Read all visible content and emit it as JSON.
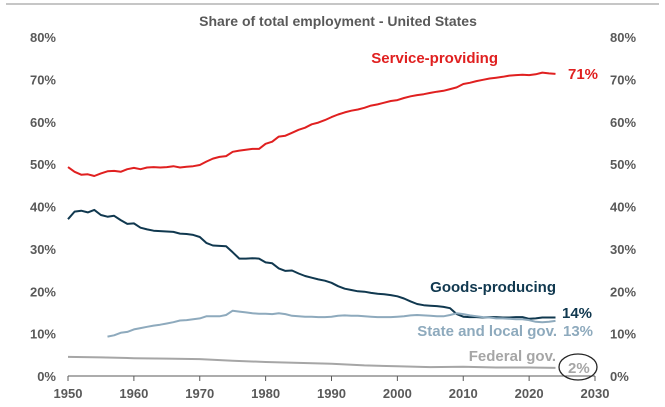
{
  "chart_data": {
    "type": "line",
    "title": "Share of total employment - United States",
    "xlim": [
      1950,
      2030
    ],
    "ylim": [
      0,
      80
    ],
    "x_ticks": [
      "1950",
      "1960",
      "1970",
      "1980",
      "1990",
      "2000",
      "2010",
      "2020",
      "2030"
    ],
    "y_ticks": [
      "0%",
      "10%",
      "20%",
      "30%",
      "40%",
      "50%",
      "60%",
      "70%",
      "80%"
    ],
    "grid": false,
    "legend": "none",
    "series": [
      {
        "name": "Service-providing",
        "end_label": "71%",
        "color": "#e02020",
        "x": [
          1950,
          1951,
          1952,
          1953,
          1954,
          1955,
          1956,
          1957,
          1958,
          1959,
          1960,
          1961,
          1962,
          1963,
          1964,
          1965,
          1966,
          1967,
          1968,
          1969,
          1970,
          1971,
          1972,
          1973,
          1974,
          1975,
          1976,
          1977,
          1978,
          1979,
          1980,
          1981,
          1982,
          1983,
          1984,
          1985,
          1986,
          1987,
          1988,
          1989,
          1990,
          1991,
          1992,
          1993,
          1994,
          1995,
          1996,
          1997,
          1998,
          1999,
          2000,
          2001,
          2002,
          2003,
          2004,
          2005,
          2006,
          2007,
          2008,
          2009,
          2010,
          2011,
          2012,
          2013,
          2014,
          2015,
          2016,
          2017,
          2018,
          2019,
          2020,
          2021,
          2022,
          2023,
          2024
        ],
        "values": [
          49.3,
          48.2,
          47.5,
          47.6,
          47.2,
          47.8,
          48.3,
          48.4,
          48.2,
          48.8,
          49.1,
          48.8,
          49.2,
          49.3,
          49.2,
          49.3,
          49.5,
          49.2,
          49.4,
          49.5,
          49.8,
          50.6,
          51.3,
          51.7,
          51.9,
          52.9,
          53.2,
          53.4,
          53.6,
          53.6,
          54.8,
          55.3,
          56.5,
          56.7,
          57.4,
          58.1,
          58.6,
          59.4,
          59.8,
          60.4,
          61.1,
          61.7,
          62.2,
          62.6,
          62.9,
          63.3,
          63.8,
          64.1,
          64.5,
          64.9,
          65.1,
          65.6,
          66.0,
          66.3,
          66.5,
          66.8,
          67.1,
          67.3,
          67.7,
          68.1,
          68.9,
          69.2,
          69.6,
          69.9,
          70.2,
          70.4,
          70.6,
          70.9,
          71.0,
          71.1,
          71.0,
          71.2,
          71.6,
          71.4,
          71.3
        ]
      },
      {
        "name": "Goods-producing",
        "end_label": "14%",
        "color": "#10384f",
        "x": [
          1950,
          1951,
          1952,
          1953,
          1954,
          1955,
          1956,
          1957,
          1958,
          1959,
          1960,
          1961,
          1962,
          1963,
          1964,
          1965,
          1966,
          1967,
          1968,
          1969,
          1970,
          1971,
          1972,
          1973,
          1974,
          1975,
          1976,
          1977,
          1978,
          1979,
          1980,
          1981,
          1982,
          1983,
          1984,
          1985,
          1986,
          1987,
          1988,
          1989,
          1990,
          1991,
          1992,
          1993,
          1994,
          1995,
          1996,
          1997,
          1998,
          1999,
          2000,
          2001,
          2002,
          2003,
          2004,
          2005,
          2006,
          2007,
          2008,
          2009,
          2010,
          2011,
          2012,
          2013,
          2014,
          2015,
          2016,
          2017,
          2018,
          2019,
          2020,
          2021,
          2022,
          2023,
          2024
        ],
        "values": [
          37.0,
          38.8,
          39.0,
          38.6,
          39.2,
          38.0,
          37.6,
          37.8,
          36.8,
          35.9,
          36.0,
          35.0,
          34.6,
          34.3,
          34.2,
          34.1,
          34.0,
          33.6,
          33.5,
          33.3,
          32.8,
          31.4,
          30.8,
          30.7,
          30.6,
          29.2,
          27.7,
          27.7,
          27.8,
          27.7,
          26.8,
          26.6,
          25.4,
          24.8,
          24.9,
          24.2,
          23.6,
          23.2,
          22.8,
          22.5,
          22.0,
          21.2,
          20.6,
          20.3,
          20.0,
          19.9,
          19.6,
          19.4,
          19.3,
          19.1,
          18.8,
          18.3,
          17.6,
          17.0,
          16.7,
          16.6,
          16.5,
          16.3,
          16.0,
          14.6,
          14.0,
          13.9,
          13.9,
          13.8,
          13.9,
          13.9,
          13.8,
          13.8,
          13.9,
          13.9,
          13.5,
          13.6,
          13.8,
          13.8,
          13.8
        ]
      },
      {
        "name": "State and local gov.",
        "end_label": "13%",
        "color": "#8eaabd",
        "x": [
          1956,
          1957,
          1958,
          1959,
          1960,
          1961,
          1962,
          1963,
          1964,
          1965,
          1966,
          1967,
          1968,
          1969,
          1970,
          1971,
          1972,
          1973,
          1974,
          1975,
          1976,
          1977,
          1978,
          1979,
          1980,
          1981,
          1982,
          1983,
          1984,
          1985,
          1986,
          1987,
          1988,
          1989,
          1990,
          1991,
          1992,
          1993,
          1994,
          1995,
          1996,
          1997,
          1998,
          1999,
          2000,
          2001,
          2002,
          2003,
          2004,
          2005,
          2006,
          2007,
          2008,
          2009,
          2010,
          2011,
          2012,
          2013,
          2014,
          2015,
          2016,
          2017,
          2018,
          2019,
          2020,
          2021,
          2022,
          2023,
          2024
        ],
        "values": [
          9.3,
          9.6,
          10.2,
          10.4,
          11.0,
          11.3,
          11.6,
          11.9,
          12.1,
          12.4,
          12.7,
          13.1,
          13.2,
          13.4,
          13.6,
          14.1,
          14.1,
          14.1,
          14.4,
          15.4,
          15.2,
          15.0,
          14.8,
          14.7,
          14.7,
          14.6,
          14.8,
          14.6,
          14.2,
          14.1,
          14.0,
          14.0,
          13.9,
          13.9,
          14.0,
          14.2,
          14.3,
          14.2,
          14.2,
          14.1,
          14.0,
          13.9,
          13.9,
          13.9,
          14.0,
          14.1,
          14.3,
          14.4,
          14.3,
          14.2,
          14.1,
          14.1,
          14.4,
          14.8,
          14.6,
          14.3,
          14.1,
          13.9,
          13.8,
          13.6,
          13.6,
          13.5,
          13.4,
          13.4,
          13.2,
          12.8,
          12.7,
          12.8,
          13.0
        ]
      },
      {
        "name": "Federal gov.",
        "end_label": "2%",
        "color": "#a6a6a6",
        "x": [
          1950,
          1955,
          1960,
          1965,
          1970,
          1975,
          1980,
          1985,
          1990,
          1995,
          2000,
          2005,
          2010,
          2015,
          2020,
          2024
        ],
        "values": [
          4.5,
          4.4,
          4.2,
          4.1,
          4.0,
          3.6,
          3.3,
          3.1,
          2.9,
          2.5,
          2.3,
          2.1,
          2.2,
          2.0,
          2.0,
          1.9
        ]
      }
    ]
  }
}
